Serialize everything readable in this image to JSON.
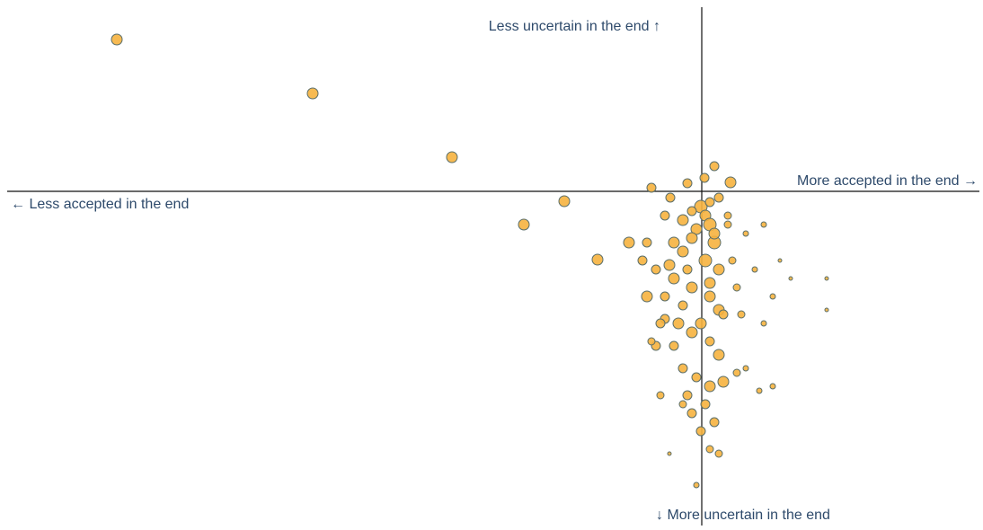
{
  "chart_data": {
    "type": "scatter",
    "annotations": [
      "Less uncertain in the end ↑",
      "More accepted in the end →",
      "← Less accepted in the end",
      "↓ More uncertain in the end"
    ],
    "xlim": [
      -7.73,
      3.09
    ],
    "ylim": [
      -3.67,
      2.05
    ],
    "color": "#f6b23f",
    "x": [
      -6.51,
      -4.33,
      -2.78,
      -1.53,
      -1.98,
      -1.16,
      -0.56,
      -0.16,
      0.14,
      0.32,
      0.03,
      -0.35,
      -0.01,
      0.04,
      0.09,
      -0.06,
      -0.11,
      0.14,
      -0.21,
      0.04,
      0.19,
      -0.31,
      -0.11,
      0.09,
      -0.21,
      0.19,
      -0.41,
      -0.01,
      -0.11,
      0.09,
      -0.31,
      0.19,
      -0.21,
      -0.06,
      0.09,
      -0.16,
      0.04,
      -0.11,
      0.14,
      -0.01,
      0.09,
      -0.06,
      -0.41,
      -0.31,
      -0.61,
      -0.81,
      -0.51,
      -0.66,
      -0.61,
      -0.41,
      0.39,
      0.49,
      0.29,
      0.34,
      0.59,
      0.79,
      0.99,
      1.39,
      1.39,
      0.69,
      0.49,
      0.64,
      0.79,
      -0.51,
      -0.56,
      -0.46,
      -0.21,
      -0.36,
      0.19,
      0.24,
      0.39,
      0.29,
      0.19,
      0.09,
      -0.11,
      -0.21,
      0.14,
      -0.26,
      -0.16,
      -0.46,
      0.69,
      0.87,
      0.24,
      0.44,
      0.09,
      -0.36
    ],
    "y": [
      1.69,
      1.09,
      0.38,
      -0.11,
      -0.37,
      -0.76,
      0.04,
      0.09,
      0.28,
      0.1,
      0.15,
      -0.07,
      -0.17,
      -0.27,
      -0.37,
      -0.42,
      -0.52,
      -0.57,
      -0.67,
      -0.77,
      -0.87,
      -0.97,
      -1.07,
      -1.17,
      -1.27,
      -1.32,
      -1.42,
      -1.47,
      -1.57,
      -1.67,
      -1.72,
      -1.82,
      -1.97,
      -2.07,
      -2.17,
      -2.27,
      -2.37,
      -2.47,
      -2.57,
      -2.67,
      -2.87,
      -3.27,
      -0.27,
      -0.57,
      -0.57,
      -0.57,
      -0.87,
      -0.77,
      -1.17,
      -1.17,
      -1.07,
      -0.47,
      -0.37,
      -0.77,
      -0.87,
      -1.17,
      -0.97,
      -0.97,
      -1.32,
      -1.47,
      -1.97,
      -2.22,
      -2.17,
      -1.72,
      -1.67,
      -2.27,
      -2.37,
      -2.92,
      -2.92,
      -2.12,
      -2.02,
      -0.27,
      -0.07,
      -0.12,
      -0.22,
      -0.32,
      -0.47,
      -1.47,
      -0.87,
      -1.47,
      -0.37,
      -0.77,
      -1.37,
      -1.37,
      -1.02,
      -0.82
    ],
    "sizes": [
      6,
      6,
      6,
      6,
      6,
      6,
      5,
      5,
      5,
      6,
      5,
      5,
      7,
      6,
      7,
      6,
      6,
      7,
      6,
      7,
      6,
      6,
      6,
      6,
      5,
      6,
      5,
      6,
      6,
      5,
      5,
      6,
      5,
      5,
      6,
      5,
      5,
      5,
      5,
      5,
      4,
      3,
      5,
      6,
      5,
      6,
      5,
      5,
      6,
      5,
      4,
      3,
      4,
      4,
      3,
      3,
      2,
      2,
      2,
      3,
      3,
      3,
      3,
      5,
      4,
      4,
      4,
      2,
      4,
      6,
      4,
      4,
      5,
      5,
      5,
      6,
      6,
      6,
      5,
      5,
      3,
      2,
      5,
      4,
      6,
      6
    ]
  }
}
